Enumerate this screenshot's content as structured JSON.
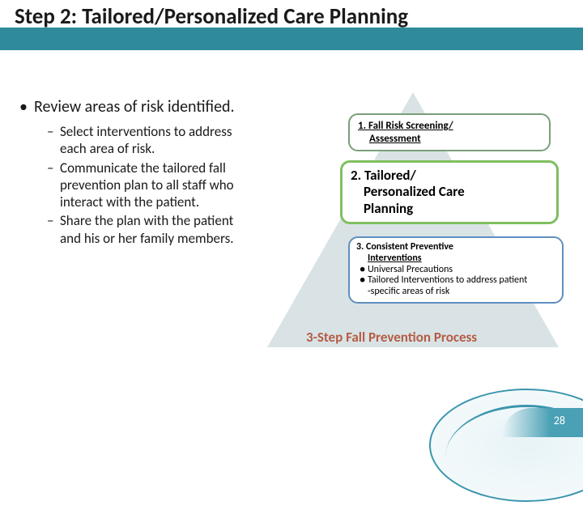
{
  "title": "Step 2: Tailored/Personalized Care Planning",
  "main_bullet": "Review areas of risk identified.",
  "sub_bullets": [
    "Select interventions to address each area of risk.",
    "Communicate the tailored fall prevention plan to all staff who interact with the patient.",
    "Share the plan with the patient and his or her family members."
  ],
  "box1": {
    "line1": "1. Fall Risk Screening/",
    "line2": "Assessment"
  },
  "box2": {
    "line1": "2. Tailored/",
    "line2": "Personalized Care",
    "line3": "Planning"
  },
  "box3": {
    "line1": "3. Consistent Preventive",
    "line2": "Interventions",
    "bul1": "● Universal Precautions",
    "bul2": "● Tailored Interventions to address patient",
    "bul3": "-specific areas of risk"
  },
  "process_label": "3-Step Fall Prevention Process",
  "page_number": "28",
  "colors": {
    "teal": "#2f8a9c",
    "triangle": "#d9e3e6",
    "box1_border": "#7a9f7a",
    "box2_border": "#7fbf5f",
    "box3_border": "#5f8fbf",
    "process_text": "#b55c44"
  }
}
